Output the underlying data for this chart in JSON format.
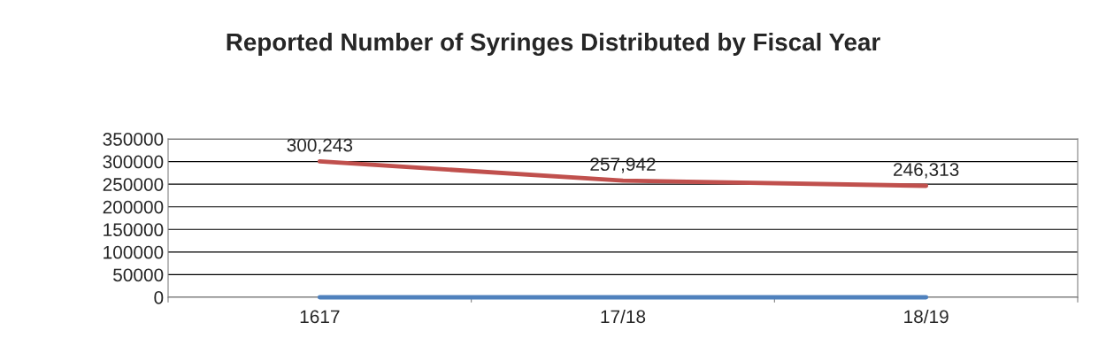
{
  "chart_data": {
    "type": "line",
    "title": "Reported Number of Syringes Distributed by Fiscal Year",
    "categories": [
      "1617",
      "17/18",
      "18/19"
    ],
    "series": [
      {
        "color": "#c0504d",
        "values": [
          300243,
          257942,
          246313
        ],
        "value_labels": [
          "300,243",
          "257,942",
          "246,313"
        ]
      },
      {
        "color": "#4f81bd",
        "values": [
          0,
          0,
          0
        ]
      }
    ],
    "ylim": [
      0,
      350000
    ],
    "yticks": [
      0,
      50000,
      100000,
      150000,
      200000,
      250000,
      300000,
      350000
    ],
    "grid": "y",
    "marker": "none",
    "line_style": "solid"
  }
}
